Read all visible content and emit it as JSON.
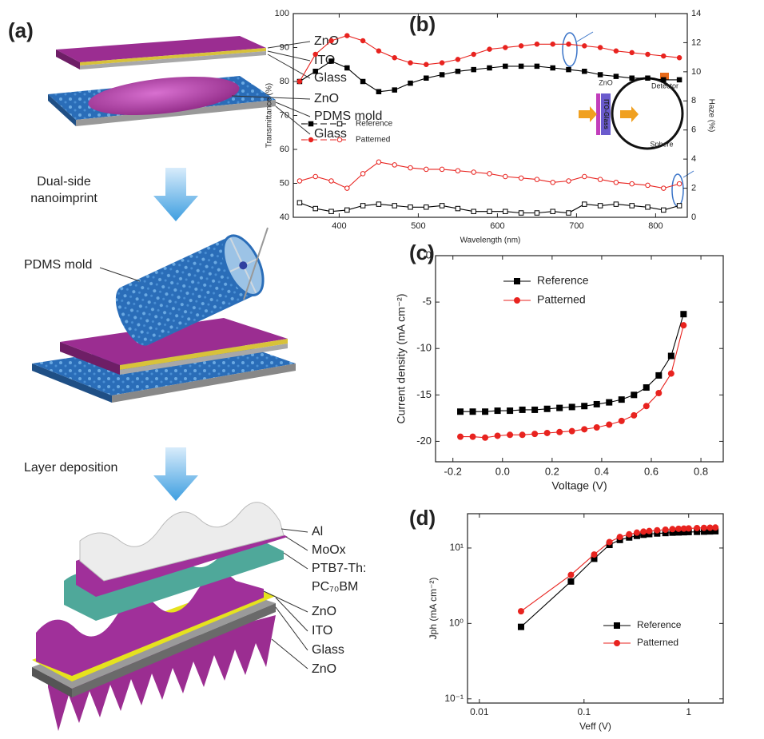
{
  "diagram": {
    "label": "(a)",
    "stack1": [
      "ZnO",
      "ITO",
      "Glass",
      "ZnO",
      "PDMS mold",
      "Glass"
    ],
    "step1": [
      "Dual-side",
      "nanoimprint"
    ],
    "mold_label": "PDMS mold",
    "step2": "Layer deposition",
    "stack2": [
      "Al",
      "MoOx",
      "PTB7-Th:",
      "PC₇₀BM",
      "ZnO",
      "ITO",
      "Glass",
      "ZnO"
    ]
  },
  "chart_data": [
    {
      "type": "line",
      "label": "(b)",
      "xlabel": "Wavelength (nm)",
      "ylabel": "Transmittance (%)",
      "y2label": "Haze (%)",
      "x": [
        350,
        370,
        390,
        410,
        430,
        450,
        470,
        490,
        510,
        530,
        550,
        570,
        590,
        610,
        630,
        650,
        670,
        690,
        710,
        730,
        750,
        770,
        790,
        810,
        830
      ],
      "xlim": [
        342,
        840
      ],
      "xticks": [
        400,
        500,
        600,
        700,
        800
      ],
      "ylim": [
        40,
        100
      ],
      "yticks": [
        40,
        50,
        60,
        70,
        80,
        90,
        100
      ],
      "y2lim": [
        0,
        14
      ],
      "y2ticks": [
        0,
        2,
        4,
        6,
        8,
        10,
        12,
        14
      ],
      "legend": "center left",
      "inset_labels": [
        "ZnO",
        "ITO-Glass",
        "Detector",
        "Sphere"
      ],
      "series": [
        {
          "name": "Reference",
          "color": "#000000",
          "marker": "square",
          "fill": "solid",
          "values": [
            80,
            83,
            86,
            84,
            80,
            77,
            77.5,
            79.5,
            81,
            82,
            83,
            83.5,
            84,
            84.5,
            84.5,
            84.5,
            84,
            83.5,
            83,
            82,
            81.5,
            81,
            81,
            80.5,
            80.5
          ]
        },
        {
          "name": "Patterned",
          "color": "#e8231f",
          "marker": "circle",
          "fill": "solid",
          "values": [
            80,
            88,
            92,
            93.5,
            92,
            89,
            87,
            85.5,
            85,
            85.5,
            86.5,
            88,
            89.5,
            90,
            90.5,
            91,
            91,
            91,
            90.5,
            90,
            89,
            88.5,
            88,
            87.5,
            87
          ]
        },
        {
          "color": "#000000",
          "marker": "square",
          "fill": "open",
          "axis": "y2",
          "values": [
            1.0,
            0.6,
            0.4,
            0.5,
            0.8,
            0.9,
            0.8,
            0.7,
            0.7,
            0.8,
            0.6,
            0.4,
            0.4,
            0.4,
            0.3,
            0.3,
            0.4,
            0.3,
            0.9,
            0.8,
            0.9,
            0.8,
            0.7,
            0.5,
            0.8
          ]
        },
        {
          "color": "#e8231f",
          "marker": "circle",
          "fill": "open",
          "axis": "y2",
          "values": [
            2.5,
            2.8,
            2.5,
            2.0,
            3.0,
            3.8,
            3.6,
            3.4,
            3.3,
            3.3,
            3.2,
            3.1,
            3.0,
            2.8,
            2.7,
            2.6,
            2.4,
            2.5,
            2.8,
            2.6,
            2.4,
            2.3,
            2.2,
            2.0,
            2.3
          ]
        }
      ]
    },
    {
      "type": "line",
      "label": "(c)",
      "xlabel": "Voltage (V)",
      "ylabel": "Current density (mA cm⁻²)",
      "x": [
        -0.17,
        -0.12,
        -0.07,
        -0.02,
        0.03,
        0.08,
        0.13,
        0.18,
        0.23,
        0.28,
        0.33,
        0.38,
        0.43,
        0.48,
        0.53,
        0.58,
        0.63,
        0.68,
        0.73
      ],
      "xlim": [
        -0.27,
        0.89
      ],
      "xticks": [
        -0.2,
        {
          "value": 0,
          "label": "0.0"
        },
        0.2,
        0.4,
        0.6,
        0.8
      ],
      "ylim": [
        -22.2,
        0
      ],
      "yticks": [
        0,
        -5,
        -10,
        -15,
        -20
      ],
      "legend": "upper left",
      "series": [
        {
          "name": "Reference",
          "color": "#000000",
          "marker": "square",
          "fill": "solid",
          "values": [
            -16.8,
            -16.8,
            -16.8,
            -16.7,
            -16.7,
            -16.6,
            -16.6,
            -16.5,
            -16.4,
            -16.3,
            -16.2,
            -16.0,
            -15.8,
            -15.5,
            -15.0,
            -14.2,
            -12.9,
            -10.8,
            -6.3
          ]
        },
        {
          "name": "Patterned",
          "color": "#e8231f",
          "marker": "circle",
          "fill": "solid",
          "values": [
            -19.5,
            -19.5,
            -19.6,
            -19.4,
            -19.3,
            -19.3,
            -19.2,
            -19.1,
            -19.0,
            -18.9,
            -18.7,
            -18.5,
            -18.2,
            -17.8,
            -17.2,
            -16.2,
            -14.8,
            -12.7,
            -7.5
          ]
        }
      ]
    },
    {
      "type": "line",
      "label": "(d)",
      "xlabel": "Veff (V)",
      "ylabel": "Jph (mA cm⁻²)",
      "log_x": true,
      "log_y": true,
      "x": [
        0.025,
        0.075,
        0.125,
        0.175,
        0.22,
        0.27,
        0.32,
        0.37,
        0.42,
        0.5,
        0.6,
        0.7,
        0.8,
        0.9,
        1.0,
        1.2,
        1.4,
        1.6,
        1.8
      ],
      "xlim": [
        0.0077,
        2.14
      ],
      "xticks": [
        0.01,
        0.1,
        1
      ],
      "ylim": [
        0.088,
        28.5
      ],
      "yticks": [
        {
          "value": 0.1,
          "label": "10⁻¹"
        },
        {
          "value": 1,
          "label": "10⁰"
        },
        {
          "value": 10,
          "label": "10¹"
        }
      ],
      "legend": "lower right",
      "series": [
        {
          "name": "Reference",
          "color": "#000000",
          "marker": "square",
          "fill": "solid",
          "values": [
            0.9,
            3.6,
            7.2,
            11,
            12.8,
            13.8,
            14.5,
            15,
            15.3,
            15.6,
            15.8,
            16,
            16.1,
            16.2,
            16.3,
            16.4,
            16.5,
            16.6,
            16.7
          ]
        },
        {
          "name": "Patterned",
          "color": "#e8231f",
          "marker": "circle",
          "fill": "solid",
          "values": [
            1.45,
            4.4,
            8.2,
            12,
            14,
            15.2,
            16,
            16.5,
            16.8,
            17.2,
            17.5,
            17.8,
            18,
            18.1,
            18.2,
            18.4,
            18.5,
            18.6,
            18.7
          ]
        }
      ]
    }
  ]
}
